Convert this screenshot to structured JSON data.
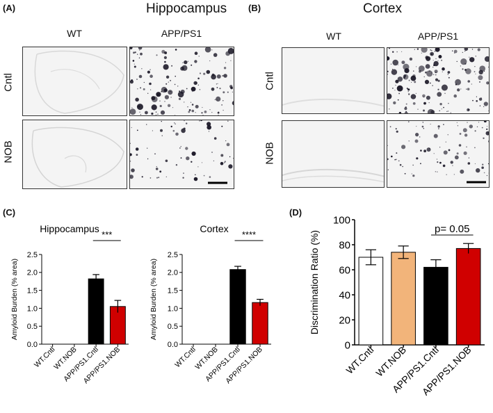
{
  "panels": {
    "a": {
      "label": "(A)",
      "title": "Hippocampus",
      "col_wt": "WT",
      "col_app": "APP/PS1",
      "row_cntl": "Cntl",
      "row_nob": "NOB"
    },
    "b": {
      "label": "(B)",
      "title": "Cortex",
      "col_wt": "WT",
      "col_app": "APP/PS1",
      "row_cntl": "Cntl",
      "row_nob": "NOB"
    },
    "c": {
      "label": "(C)"
    },
    "d": {
      "label": "(D)"
    }
  },
  "colors": {
    "wt_cntl": "#ffffff",
    "wt_nob": "#f2b47a",
    "app_cntl": "#000000",
    "app_nob": "#d00000",
    "stroke": "#000000"
  },
  "chart_data": [
    {
      "type": "bar",
      "title": "Hippocampus",
      "ylabel": "Amyloid Burden (% area)",
      "categories": [
        "WT.Cntl",
        "WT.NOB",
        "APP/PS1.Cntl",
        "APP/PS1.NOB"
      ],
      "values": [
        0,
        0,
        1.82,
        1.05
      ],
      "errors": [
        0,
        0,
        0.12,
        0.17
      ],
      "colors": [
        "#000000",
        "#000000",
        "#000000",
        "#d00000"
      ],
      "ylim": [
        0,
        2.5
      ],
      "yticks": [
        "0.0",
        "0.5",
        "1.0",
        "1.5",
        "2.0",
        "2.5"
      ],
      "annotation": {
        "text": "***",
        "from": 2,
        "to": 3
      }
    },
    {
      "type": "bar",
      "title": "Cortex",
      "ylabel": "Amyloid Burden (% area)",
      "categories": [
        "WT.Cntl",
        "WT.NOB",
        "APP/PS1.Cntl",
        "APP/PS1.NOB"
      ],
      "values": [
        0,
        0,
        2.08,
        1.16
      ],
      "errors": [
        0,
        0,
        0.09,
        0.09
      ],
      "colors": [
        "#000000",
        "#000000",
        "#000000",
        "#d00000"
      ],
      "ylim": [
        0,
        2.5
      ],
      "yticks": [
        "0.0",
        "0.5",
        "1.0",
        "1.5",
        "2.0",
        "2.5"
      ],
      "annotation": {
        "text": "****",
        "from": 2,
        "to": 3
      }
    },
    {
      "type": "bar",
      "title": "",
      "ylabel": "Discrimination Ratio (%)",
      "categories": [
        "WT.Cntl",
        "WT.NOB",
        "APP/PS1.Cntl",
        "APP/PS1.NOB"
      ],
      "values": [
        70,
        74,
        62,
        77
      ],
      "errors": [
        6,
        5,
        6,
        4
      ],
      "colors": [
        "#ffffff",
        "#f2b47a",
        "#000000",
        "#d00000"
      ],
      "ylim": [
        0,
        100
      ],
      "yticks": [
        "0",
        "20",
        "40",
        "60",
        "80",
        "100"
      ],
      "annotation": {
        "text": "p= 0.05",
        "from": 2,
        "to": 3
      }
    }
  ]
}
